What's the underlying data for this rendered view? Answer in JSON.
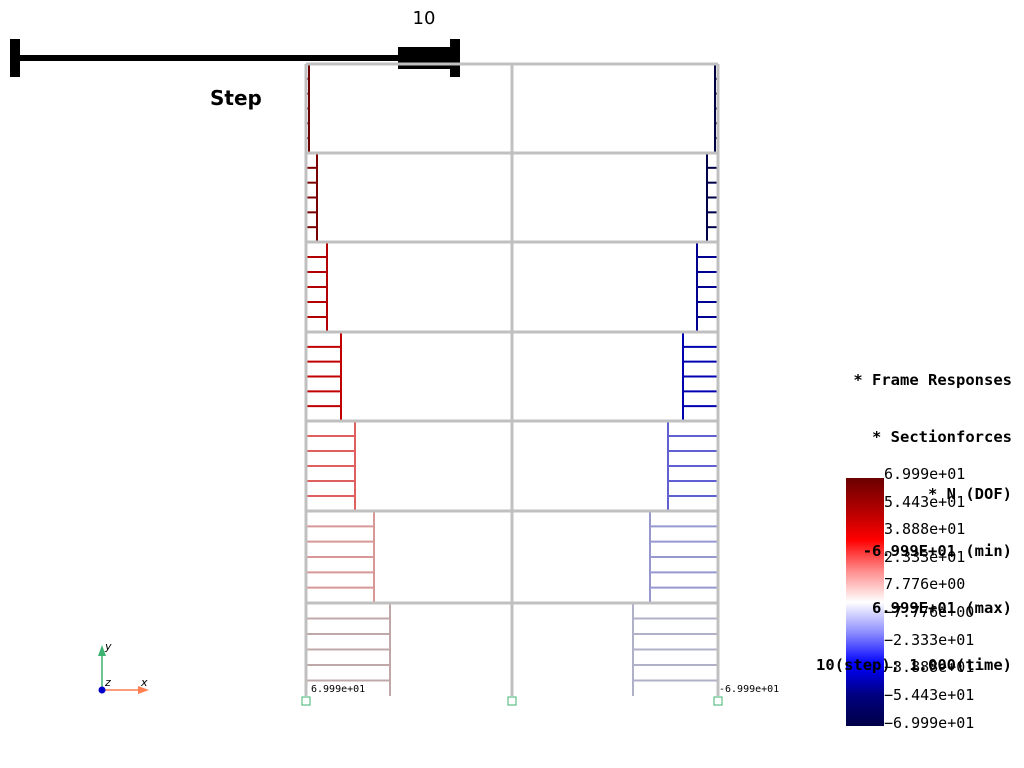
{
  "slider": {
    "value": "10",
    "label": "Step"
  },
  "info_lines": [
    "* Frame Responses",
    "* Sectionforces",
    "* N (DOF)",
    "-6.999E+01 (min)",
    "6.999E+01 (max)",
    "10(step); 1.000(time)"
  ],
  "colorbar": {
    "labels": [
      "6.999e+01",
      "5.443e+01",
      "3.888e+01",
      "2.333e+01",
      "7.776e+00",
      "−7.776e+00",
      "−2.333e+01",
      "−3.888e+01",
      "−5.443e+01",
      "−6.999e+01"
    ],
    "stops": [
      "#6b0000",
      "#b00000",
      "#ff0000",
      "#ff8c8c",
      "#ffffff",
      "#8c8cff",
      "#0000ff",
      "#000080",
      "#000046"
    ]
  },
  "end_labels": {
    "left": "6.999e+01",
    "right": "-6.999e+01"
  },
  "axes": {
    "x": "x",
    "y": "y",
    "z": "z"
  },
  "colors": {
    "frame": "#c0c0c0",
    "left_diagram": [
      "#6b0000",
      "#7a0000",
      "#b20000",
      "#c00000",
      "#e06060",
      "#d89898",
      "#c0a8a8"
    ],
    "right_diagram": [
      "#000040",
      "#00004a",
      "#000090",
      "#0000b0",
      "#6060d0",
      "#9898d0",
      "#b0b0c8"
    ]
  }
}
